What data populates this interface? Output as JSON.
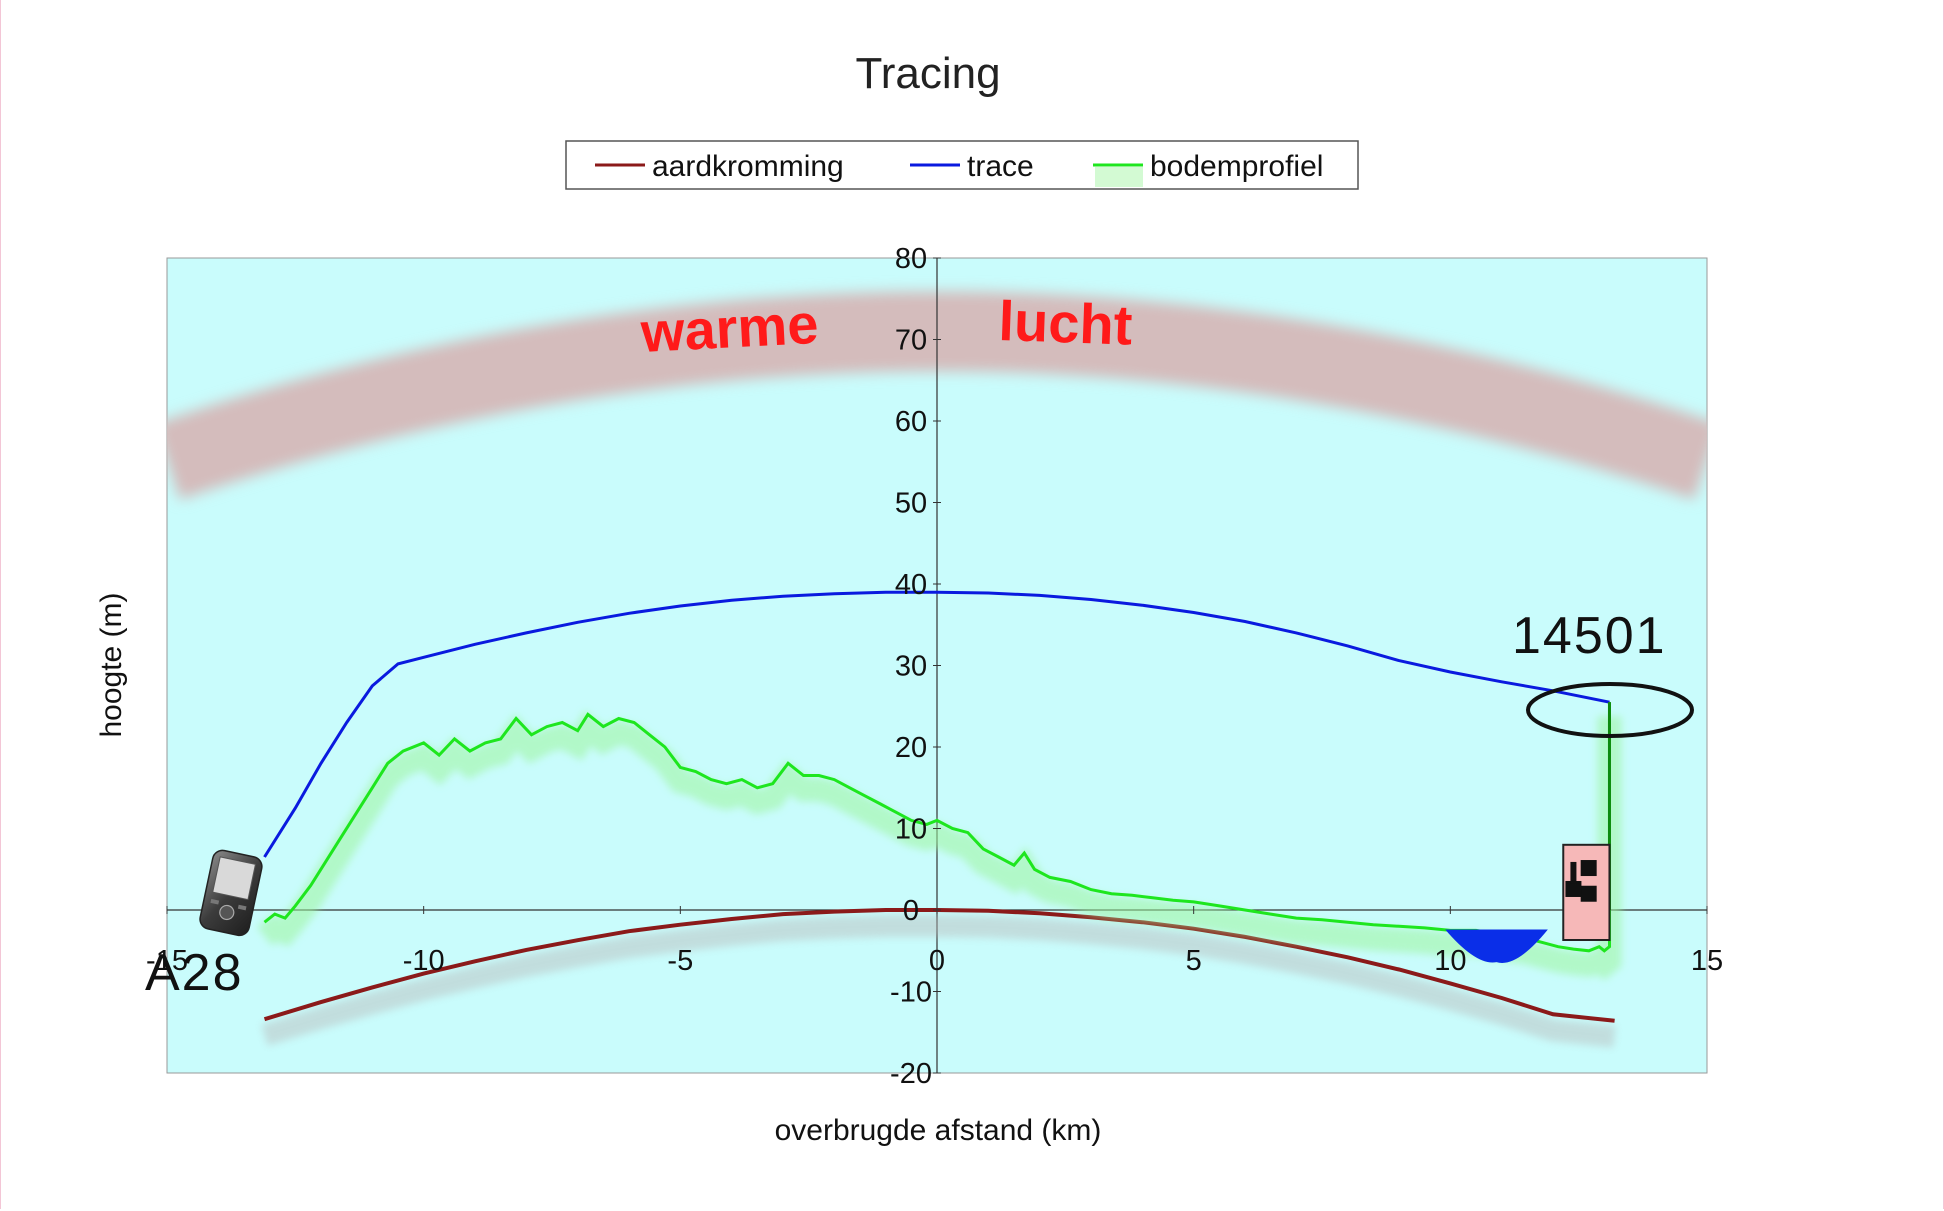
{
  "chart_data": {
    "type": "line",
    "title": "Tracing",
    "xlabel": "overbrugde afstand (km)",
    "ylabel": "hoogte (m)",
    "xlim": [
      -15,
      15
    ],
    "ylim": [
      -20,
      80
    ],
    "x_ticks": [
      -15,
      -10,
      -5,
      0,
      5,
      10,
      15
    ],
    "y_ticks": [
      -20,
      -10,
      0,
      10,
      20,
      30,
      40,
      50,
      60,
      70,
      80
    ],
    "x_tick_labels": [
      "-15",
      "-10",
      "-5",
      "0",
      "5",
      "10",
      "15"
    ],
    "y_tick_labels": [
      "-20",
      "-10",
      "0",
      "10",
      "20",
      "30",
      "40",
      "50",
      "60",
      "70",
      "80"
    ],
    "legend_position": "top",
    "grid": false,
    "background": "#c9fcfc",
    "series": [
      {
        "name": "aardkromming",
        "color": "#8b1a1a",
        "x": [
          -13.1,
          -12,
          -11,
          -10,
          -9,
          -8,
          -7,
          -6,
          -5,
          -4,
          -3,
          -2,
          -1,
          0,
          1,
          2,
          3,
          4,
          5,
          6,
          7,
          8,
          9,
          10,
          11,
          12,
          13.2
        ],
        "y": [
          -13.4,
          -11.3,
          -9.5,
          -7.8,
          -6.3,
          -4.9,
          -3.7,
          -2.6,
          -1.8,
          -1.1,
          -0.5,
          -0.2,
          0.0,
          0.0,
          -0.1,
          -0.4,
          -0.9,
          -1.5,
          -2.3,
          -3.3,
          -4.5,
          -5.8,
          -7.3,
          -9.0,
          -10.8,
          -12.8,
          -13.6
        ]
      },
      {
        "name": "trace",
        "color": "#0a1adf",
        "x": [
          -13.1,
          -12.5,
          -12,
          -11.5,
          -11,
          -10.5,
          -10,
          -9,
          -8,
          -7,
          -6,
          -5,
          -4,
          -3,
          -2,
          -1,
          0,
          1,
          2,
          3,
          4,
          5,
          6,
          7,
          8,
          9,
          10,
          11,
          12,
          13.1
        ],
        "y": [
          6.5,
          12.5,
          18.0,
          23.0,
          27.5,
          30.2,
          31.0,
          32.6,
          34.0,
          35.3,
          36.4,
          37.3,
          38.0,
          38.5,
          38.8,
          39.0,
          39.0,
          38.9,
          38.6,
          38.1,
          37.4,
          36.5,
          35.4,
          34.0,
          32.4,
          30.6,
          29.2,
          28.0,
          26.9,
          25.5
        ]
      },
      {
        "name": "bodemprofiel",
        "color": "#1ee61e",
        "x": [
          -13.1,
          -12.9,
          -12.7,
          -12.5,
          -12.2,
          -11.9,
          -11.6,
          -11.3,
          -11.0,
          -10.7,
          -10.4,
          -10.0,
          -9.7,
          -9.4,
          -9.1,
          -8.8,
          -8.5,
          -8.2,
          -7.9,
          -7.6,
          -7.3,
          -7.0,
          -6.8,
          -6.5,
          -6.2,
          -5.9,
          -5.6,
          -5.3,
          -5.0,
          -4.7,
          -4.4,
          -4.1,
          -3.8,
          -3.5,
          -3.2,
          -2.9,
          -2.6,
          -2.3,
          -2.0,
          -1.7,
          -1.4,
          -1.1,
          -0.8,
          -0.5,
          -0.2,
          0.0,
          0.3,
          0.6,
          0.9,
          1.2,
          1.5,
          1.7,
          1.9,
          2.2,
          2.6,
          3.0,
          3.4,
          3.8,
          4.2,
          4.6,
          5.0,
          5.5,
          6.0,
          6.5,
          7.0,
          7.5,
          8.0,
          8.5,
          9.0,
          9.5,
          10.0,
          10.5,
          11.0,
          11.5,
          11.8,
          12.1,
          12.4,
          12.7,
          12.9,
          13.0,
          13.1,
          13.1
        ],
        "y": [
          -1.5,
          -0.5,
          -1.0,
          0.5,
          3.0,
          6.0,
          9.0,
          12.0,
          15.0,
          18.0,
          19.5,
          20.5,
          19.0,
          21.0,
          19.5,
          20.5,
          21.0,
          23.5,
          21.5,
          22.5,
          23.0,
          22.0,
          24.0,
          22.5,
          23.5,
          23.0,
          21.5,
          20.0,
          17.5,
          17.0,
          16.0,
          15.5,
          16.0,
          15.0,
          15.5,
          18.0,
          16.5,
          16.5,
          16.0,
          15.0,
          14.0,
          13.0,
          12.0,
          11.0,
          10.5,
          11.0,
          10.0,
          9.5,
          7.5,
          6.5,
          5.5,
          7.0,
          5.0,
          4.0,
          3.5,
          2.5,
          2.0,
          1.8,
          1.5,
          1.2,
          1.0,
          0.5,
          0.0,
          -0.5,
          -1.0,
          -1.2,
          -1.5,
          -1.8,
          -2.0,
          -2.2,
          -2.5,
          -2.5,
          -3.0,
          -3.5,
          -4.0,
          -4.5,
          -4.8,
          -5.0,
          -4.5,
          -5.0,
          -4.5,
          25.5
        ]
      }
    ],
    "annotations": {
      "warm_air_band": {
        "label_left": "warme",
        "label_right": "lucht",
        "color": "#d4bcbc",
        "center_y_at_0": 71,
        "center_y_at_edges": 55,
        "thickness": 12
      },
      "water": {
        "x_start": 9.9,
        "x_end": 11.9,
        "depth": 4,
        "color": "#0a2ee8"
      },
      "building": {
        "x_start": 12.2,
        "x_end": 13.1,
        "y_bottom": 0,
        "y_top": 8,
        "color": "#f6b8b8"
      },
      "phone_label": "A28",
      "site_label": "14501"
    }
  }
}
